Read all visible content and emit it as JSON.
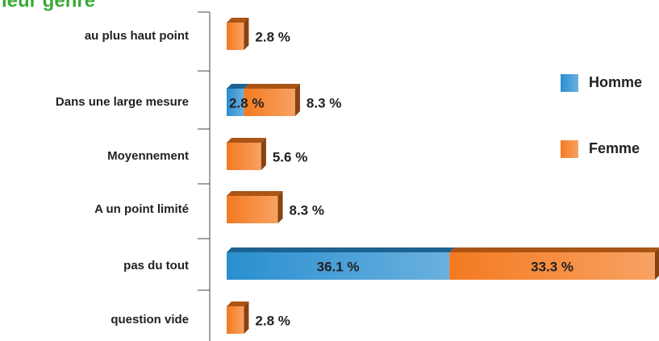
{
  "chart_data": {
    "type": "bar",
    "orientation": "horizontal",
    "stacked": true,
    "title": "leur genre",
    "categories": [
      "au plus haut point",
      "Dans une large mesure",
      "Moyennement",
      "A un point limité",
      "pas du tout",
      "question vide"
    ],
    "series": [
      {
        "name": "Homme",
        "color": "#2a8fd0",
        "values": [
          null,
          2.8,
          null,
          null,
          36.1,
          null
        ],
        "value_labels": [
          null,
          "2.8 %",
          null,
          null,
          "36.1 %",
          null
        ]
      },
      {
        "name": "Femme",
        "color": "#f47a20",
        "values": [
          2.8,
          8.3,
          5.6,
          8.3,
          33.3,
          2.8
        ],
        "value_labels": [
          "2.8 %",
          "8.3 %",
          "5.6 %",
          "8.3 %",
          "33.3 %",
          "2.8 %"
        ]
      }
    ],
    "legend": "right"
  }
}
